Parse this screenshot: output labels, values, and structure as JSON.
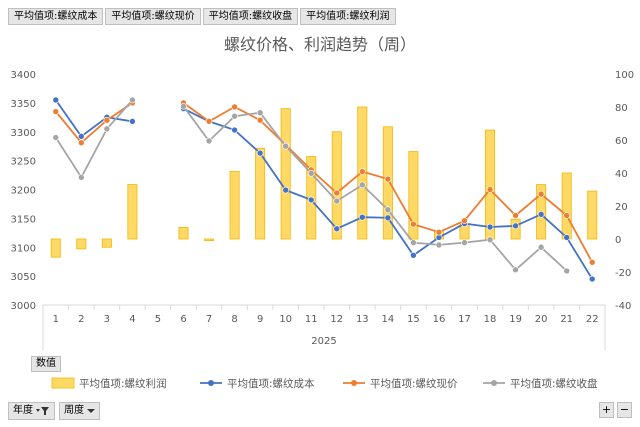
{
  "top_tabs": [
    "平均值项:螺纹成本",
    "平均值项:螺纹现价",
    "平均值项:螺纹收盘",
    "平均值项:螺纹利润"
  ],
  "values_tag": "数值",
  "bottom_controls": {
    "year": "年度",
    "week": "周度"
  },
  "zoom": {
    "plus": "+",
    "minus": "−"
  },
  "colors": {
    "profit": "#ffd966",
    "profit_stroke": "#f2b705",
    "cost": "#4472c4",
    "price": "#ed7d31",
    "close": "#a5a5a5"
  },
  "chart_data": {
    "type": "bar+line",
    "title": "螺纹价格、利润趋势（周）",
    "x_group_label": "2025",
    "categories": [
      "1",
      "2",
      "3",
      "4",
      "5",
      "6",
      "7",
      "8",
      "9",
      "10",
      "11",
      "12",
      "13",
      "14",
      "15",
      "16",
      "17",
      "18",
      "19",
      "20",
      "21",
      "22"
    ],
    "y_left": {
      "min": 3000,
      "max": 3400,
      "ticks": [
        3000,
        3050,
        3100,
        3150,
        3200,
        3250,
        3300,
        3350,
        3400
      ]
    },
    "y_right": {
      "min": -40,
      "max": 100,
      "ticks": [
        -40,
        -20,
        0,
        20,
        40,
        60,
        80,
        100
      ]
    },
    "grid": false,
    "legend_position": "bottom",
    "series": [
      {
        "name": "平均值项:螺纹利润",
        "type": "bar",
        "axis": "right",
        "values": [
          -11,
          -6,
          -5,
          33,
          null,
          7,
          -1,
          41,
          55,
          79,
          50,
          65,
          80,
          68,
          53,
          5,
          9,
          66,
          12,
          33,
          40,
          29
        ]
      },
      {
        "name": "平均值项:螺纹成本",
        "type": "line",
        "axis": "left",
        "values": [
          3355,
          3292,
          3325,
          3318,
          null,
          3340,
          3318,
          3303,
          3263,
          3199,
          3182,
          3132,
          3152,
          3151,
          3086,
          3117,
          3141,
          3135,
          3137,
          3157,
          3117,
          3045
        ]
      },
      {
        "name": "平均值项:螺纹现价",
        "type": "line",
        "axis": "left",
        "values": [
          3335,
          3281,
          3320,
          3350,
          null,
          3350,
          3318,
          3343,
          3320,
          3277,
          3234,
          3194,
          3231,
          3218,
          3140,
          3126,
          3146,
          3200,
          3155,
          3192,
          3155,
          3074
        ]
      },
      {
        "name": "平均值项:螺纹收盘",
        "type": "line",
        "axis": "left",
        "values": [
          3290,
          3221,
          3305,
          3355,
          null,
          3344,
          3284,
          3327,
          3333,
          3275,
          3228,
          3180,
          3208,
          3165,
          3108,
          3104,
          3108,
          3113,
          3061,
          3100,
          3059,
          null
        ]
      }
    ]
  }
}
